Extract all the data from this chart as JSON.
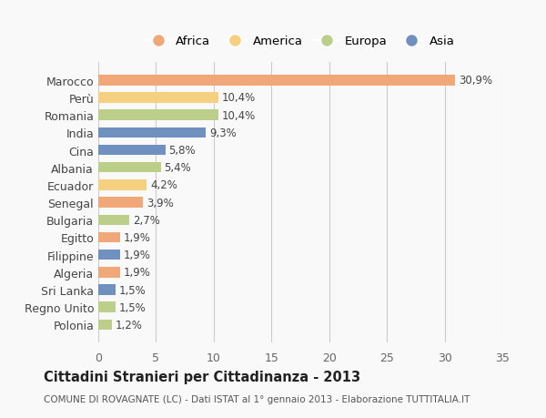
{
  "countries": [
    "Marocco",
    "Perù",
    "Romania",
    "India",
    "Cina",
    "Albania",
    "Ecuador",
    "Senegal",
    "Bulgaria",
    "Egitto",
    "Filippine",
    "Algeria",
    "Sri Lanka",
    "Regno Unito",
    "Polonia"
  ],
  "values": [
    30.9,
    10.4,
    10.4,
    9.3,
    5.8,
    5.4,
    4.2,
    3.9,
    2.7,
    1.9,
    1.9,
    1.9,
    1.5,
    1.5,
    1.2
  ],
  "continents": [
    "Africa",
    "America",
    "Europa",
    "Asia",
    "Asia",
    "Europa",
    "America",
    "Africa",
    "Europa",
    "Africa",
    "Asia",
    "Africa",
    "Asia",
    "Europa",
    "Europa"
  ],
  "colors": {
    "Africa": "#F0A878",
    "America": "#F5D080",
    "Europa": "#BCCF8A",
    "Asia": "#7090C0"
  },
  "legend_order": [
    "Africa",
    "America",
    "Europa",
    "Asia"
  ],
  "title": "Cittadini Stranieri per Cittadinanza - 2013",
  "subtitle": "COMUNE DI ROVAGNATE (LC) - Dati ISTAT al 1° gennaio 2013 - Elaborazione TUTTITALIA.IT",
  "xlim": [
    0,
    35
  ],
  "xticks": [
    0,
    5,
    10,
    15,
    20,
    25,
    30,
    35
  ],
  "bg_color": "#f9f9f9",
  "grid_color": "#cccccc"
}
